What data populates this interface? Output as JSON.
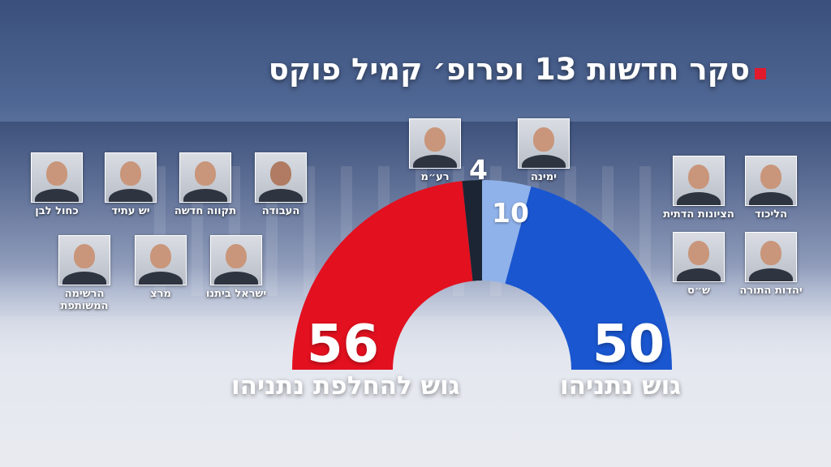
{
  "title": "סקר חדשות 13 ופרופ׳ קמיל פוקס",
  "chart_data": {
    "type": "pie",
    "shape": "semicircle",
    "segments": [
      {
        "name": "גוש להחלפת נתניהו",
        "value": 56,
        "color": "#e3101f"
      },
      {
        "name": "רע״מ",
        "value": 4,
        "color": "#1c2533"
      },
      {
        "name": "ימינה",
        "value": 10,
        "color": "#8fb2ea"
      },
      {
        "name": "גוש נתניהו",
        "value": 50,
        "color": "#1a56d0"
      }
    ],
    "blocs": {
      "left": {
        "value": "56",
        "label": "גוש להחלפת נתניהו"
      },
      "right": {
        "value": "50",
        "label": "גוש נתניהו"
      }
    },
    "segment_labels": {
      "raam": "4",
      "yamina": "10"
    }
  },
  "parties": {
    "left_row1": [
      "כחול לבן",
      "יש עתיד",
      "תקווה חדשה",
      "העבודה"
    ],
    "left_row2": [
      "הרשימה המשותפת",
      "מרצ",
      "ישראל ביתנו"
    ],
    "center": [
      "רע״מ",
      "ימינה"
    ],
    "right_row1": [
      "הציונות הדתית",
      "הליכוד"
    ],
    "right_row2": [
      "ש״ס",
      "יהדות התורה"
    ]
  }
}
